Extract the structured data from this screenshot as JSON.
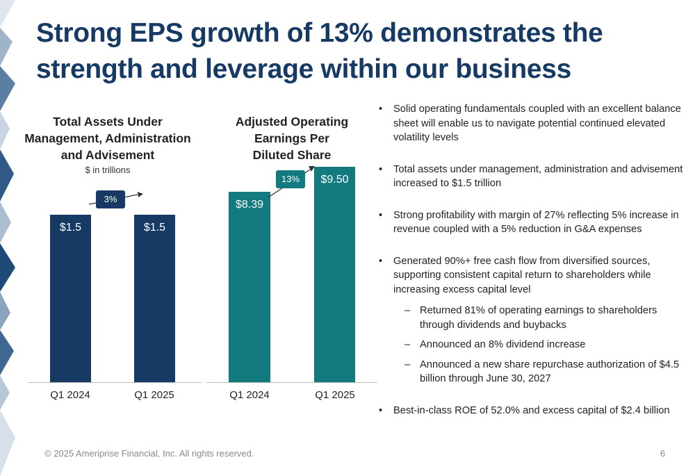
{
  "title": "Strong EPS growth of 13% demonstrates the strength and leverage within our business",
  "charts": {
    "assets": {
      "title_lines": [
        "Total Assets Under",
        "Management, Administration",
        "and Advisement"
      ],
      "subtitle": "$ in trillions",
      "bars": [
        {
          "category": "Q1 2024",
          "label": "$1.5"
        },
        {
          "category": "Q1 2025",
          "label": "$1.5"
        }
      ],
      "change": "3%",
      "color": "#163a63"
    },
    "eps": {
      "title_lines": [
        "Adjusted Operating",
        "Earnings Per",
        "Diluted Share"
      ],
      "bars": [
        {
          "category": "Q1 2024",
          "label": "$8.39"
        },
        {
          "category": "Q1 2025",
          "label": "$9.50"
        }
      ],
      "change": "13%",
      "color": "#137a80"
    }
  },
  "chart_data": [
    {
      "type": "bar",
      "title": "Total Assets Under Management, Administration and Advisement",
      "subtitle": "$ in trillions",
      "categories": [
        "Q1 2024",
        "Q1 2025"
      ],
      "values": [
        1.5,
        1.5
      ],
      "data_labels": [
        "$1.5",
        "$1.5"
      ],
      "annotation": "3%",
      "ylim": [
        0,
        1.7
      ],
      "grid": false,
      "legend": "none"
    },
    {
      "type": "bar",
      "title": "Adjusted Operating Earnings Per Diluted Share",
      "categories": [
        "Q1 2024",
        "Q1 2025"
      ],
      "values": [
        8.39,
        9.5
      ],
      "data_labels": [
        "$8.39",
        "$9.50"
      ],
      "annotation": "13%",
      "ylim": [
        0,
        9.5
      ],
      "grid": false,
      "legend": "none"
    }
  ],
  "bullets": [
    {
      "text": "Solid operating fundamentals coupled with an excellent balance sheet will enable us to navigate potential continued elevated volatility levels",
      "subs": []
    },
    {
      "text": "Total assets under management, administration and advisement increased to $1.5 trillion",
      "subs": []
    },
    {
      "text": "Strong profitability with margin of 27% reflecting 5% increase in revenue coupled with a 5% reduction in G&A expenses",
      "subs": []
    },
    {
      "text": "Generated 90%+ free cash flow from diversified sources, supporting consistent capital return to shareholders while increasing excess capital level",
      "subs": [
        "Returned 81% of operating earnings to shareholders through dividends and buybacks",
        "Announced an 8% dividend increase",
        "Announced a new share repurchase authorization of $4.5 billion through June 30, 2027"
      ]
    },
    {
      "text": "Best-in-class ROE of 52.0% and excess capital of $2.4 billion",
      "subs": []
    }
  ],
  "bullet_char": "•",
  "dash_char": "–",
  "footer": "© 2025 Ameriprise Financial, Inc. All rights reserved.",
  "page_number": "6"
}
